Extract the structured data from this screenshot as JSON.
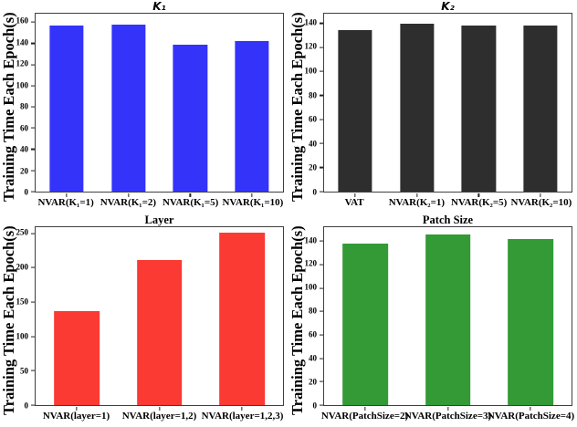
{
  "chart_data": [
    {
      "type": "bar",
      "title": "K₁",
      "title_math": true,
      "ylabel": "Training Time Each Epoch(s)",
      "categories": [
        "NVAR(K₁=1)",
        "NVAR(K₁=2)",
        "NVAR(K₁=5)",
        "NVAR(K₁=10)"
      ],
      "values": [
        157,
        158,
        139,
        142
      ],
      "yticks": [
        0,
        20,
        40,
        60,
        80,
        100,
        120,
        140,
        160
      ],
      "ylim": [
        0,
        168
      ],
      "bar_color": "#3333fa",
      "grid": false,
      "legend": "none"
    },
    {
      "type": "bar",
      "title": "K₂",
      "title_math": true,
      "ylabel": "Training Time Each Epoch(s)",
      "categories": [
        "VAT",
        "NVAR(K₂=1)",
        "NVAR(K₂=5)",
        "NVAR(K₂=10)"
      ],
      "values": [
        134,
        140,
        138,
        138
      ],
      "yticks": [
        0,
        20,
        40,
        60,
        80,
        100,
        120,
        140
      ],
      "ylim": [
        0,
        148
      ],
      "bar_color": "#2e2e2e",
      "grid": false,
      "legend": "none"
    },
    {
      "type": "bar",
      "title": "Layer",
      "title_math": false,
      "ylabel": "Training Time Each Epoch(s)",
      "categories": [
        "NVAR(layer=1)",
        "NVAR(layer=1,2)",
        "NVAR(layer=1,2,3)"
      ],
      "values": [
        137,
        211,
        251
      ],
      "yticks": [
        0,
        50,
        100,
        150,
        200,
        250
      ],
      "ylim": [
        0,
        259
      ],
      "bar_color": "#fa3a33",
      "grid": false,
      "legend": "none"
    },
    {
      "type": "bar",
      "title": "Patch Size",
      "title_math": false,
      "ylabel": "Training Time Each Epoch(s)",
      "categories": [
        "NVAR(PatchSize=2)",
        "NVAR(PatchSize=3)",
        "NVAR(PatchSize=4)"
      ],
      "values": [
        138,
        146,
        142
      ],
      "yticks": [
        0,
        20,
        40,
        60,
        80,
        100,
        120,
        140
      ],
      "ylim": [
        0,
        152
      ],
      "bar_color": "#339a35",
      "grid": false,
      "legend": "none"
    }
  ],
  "figure": {
    "axis_color": "#3f3f3f"
  }
}
